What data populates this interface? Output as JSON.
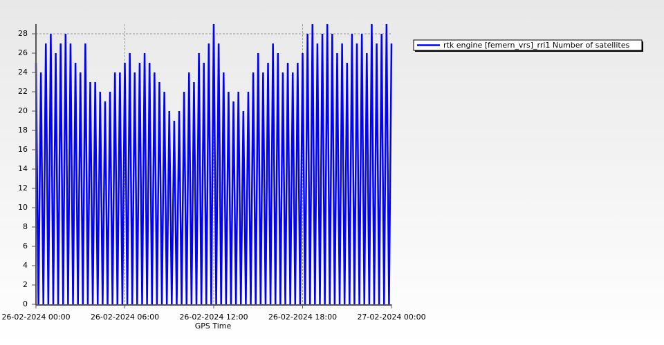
{
  "chart_data": {
    "type": "line",
    "x_label": "GPS Time",
    "x": [
      0,
      10,
      20,
      30,
      40,
      50,
      60,
      70,
      80,
      90,
      100,
      110,
      120,
      130,
      140,
      150,
      160,
      170,
      180,
      190,
      200,
      210,
      220,
      230,
      240,
      250,
      260,
      270,
      280,
      290,
      300,
      310,
      320,
      330,
      340,
      350,
      360,
      370,
      380,
      390,
      400,
      410,
      420,
      430,
      440,
      450,
      460,
      470,
      480,
      490,
      500,
      510,
      520,
      530,
      540,
      550,
      560,
      570,
      580,
      590,
      600,
      610,
      620,
      630,
      640,
      650,
      660,
      670,
      680,
      690,
      700,
      710,
      720,
      730,
      740,
      750,
      760,
      770,
      780,
      790,
      800,
      810,
      820,
      830,
      840,
      850,
      860,
      870,
      880,
      890,
      900,
      910,
      920,
      930,
      940,
      950,
      960,
      970,
      980,
      990,
      1000,
      1010,
      1020,
      1030,
      1040,
      1050,
      1060,
      1070,
      1080,
      1090,
      1100,
      1110,
      1120,
      1130,
      1140,
      1150,
      1160,
      1170,
      1180,
      1190,
      1200,
      1210,
      1220,
      1230,
      1240,
      1250,
      1260,
      1270,
      1280,
      1290,
      1300,
      1310,
      1320,
      1330,
      1340,
      1350,
      1360,
      1370,
      1380,
      1390,
      1400,
      1410,
      1420,
      1430,
      1440
    ],
    "series": [
      {
        "name": "rtk engine [femern_vrs]_rri1 Number of satellites",
        "color": "#0000ff",
        "values": [
          25,
          0,
          24,
          0,
          27,
          0,
          28,
          0,
          26,
          0,
          27,
          0,
          28,
          0,
          27,
          0,
          25,
          0,
          24,
          0,
          27,
          0,
          23,
          0,
          23,
          0,
          22,
          0,
          21,
          0,
          22,
          0,
          24,
          0,
          24,
          0,
          25,
          0,
          26,
          0,
          24,
          0,
          25,
          0,
          26,
          0,
          25,
          0,
          24,
          0,
          23,
          0,
          22,
          0,
          20,
          0,
          19,
          0,
          20,
          0,
          22,
          0,
          24,
          0,
          23,
          0,
          26,
          0,
          25,
          0,
          27,
          0,
          29,
          0,
          27,
          0,
          24,
          0,
          22,
          0,
          21,
          0,
          22,
          0,
          20,
          0,
          22,
          0,
          24,
          0,
          26,
          0,
          24,
          0,
          25,
          0,
          27,
          0,
          26,
          0,
          24,
          0,
          25,
          0,
          24,
          0,
          25,
          0,
          26,
          0,
          28,
          0,
          29,
          0,
          27,
          0,
          28,
          0,
          29,
          0,
          28,
          0,
          26,
          0,
          27,
          0,
          25,
          0,
          28,
          0,
          27,
          0,
          28,
          0,
          26,
          0,
          29,
          0,
          27,
          0,
          28,
          0,
          29,
          0,
          27
        ]
      }
    ],
    "xlim": [
      0,
      1440
    ],
    "xticks": [
      {
        "value": 0,
        "label": "26-02-2024 00:00"
      },
      {
        "value": 360,
        "label": "26-02-2024 06:00"
      },
      {
        "value": 720,
        "label": "26-02-2024 12:00"
      },
      {
        "value": 1080,
        "label": "26-02-2024 18:00"
      },
      {
        "value": 1440,
        "label": "27-02-2024 00:00"
      }
    ],
    "ylim": [
      0,
      29
    ],
    "yticks": [
      0,
      2,
      4,
      6,
      8,
      10,
      12,
      14,
      16,
      18,
      20,
      22,
      24,
      26,
      28
    ],
    "grid": true,
    "legend": "right"
  }
}
